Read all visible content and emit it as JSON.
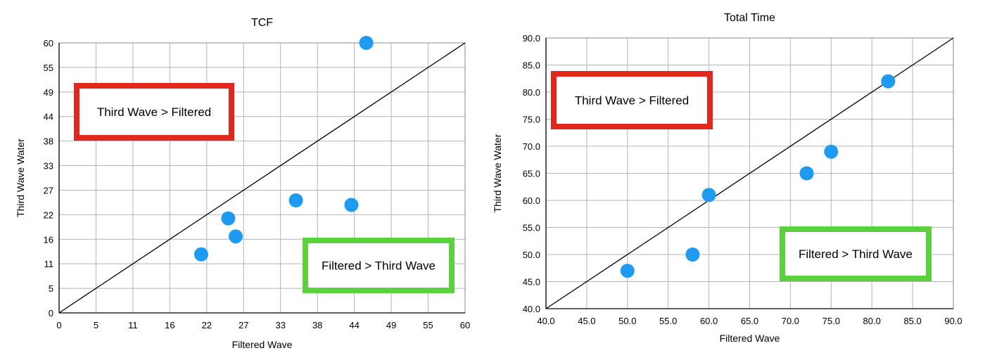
{
  "chart_data": [
    {
      "type": "scatter",
      "title": "TCF",
      "xlabel": "Filtered Wave",
      "ylabel": "Third Wave Water",
      "xlim": [
        0,
        60
      ],
      "ylim": [
        0,
        60
      ],
      "x_ticks": [
        "0",
        "5",
        "11",
        "16",
        "22",
        "27",
        "33",
        "38",
        "44",
        "49",
        "55",
        "60"
      ],
      "y_ticks": [
        "0",
        "5",
        "11",
        "16",
        "22",
        "27",
        "33",
        "38",
        "44",
        "49",
        "55",
        "60"
      ],
      "grid": true,
      "reference_line": "y = x",
      "point_color": "#1E9BF0",
      "points": [
        {
          "x": 45.4,
          "y": 60
        },
        {
          "x": 35,
          "y": 25
        },
        {
          "x": 43.2,
          "y": 24
        },
        {
          "x": 25,
          "y": 21
        },
        {
          "x": 26.1,
          "y": 17
        },
        {
          "x": 21,
          "y": 13
        }
      ],
      "annotations": [
        {
          "text": "Third Wave > Filtered",
          "color": "#E0281F"
        },
        {
          "text": "Filtered > Third Wave",
          "color": "#5DD03F"
        }
      ]
    },
    {
      "type": "scatter",
      "title": "Total Time",
      "xlabel": "Filtered Wave",
      "ylabel": "Third Wave Water",
      "xlim": [
        40,
        90
      ],
      "ylim": [
        40,
        90
      ],
      "x_ticks": [
        "40.0",
        "45.0",
        "50.0",
        "55.0",
        "60.0",
        "65.0",
        "70.0",
        "75.0",
        "80.0",
        "85.0",
        "90.0"
      ],
      "y_ticks": [
        "40.0",
        "45.0",
        "50.0",
        "55.0",
        "60.0",
        "65.0",
        "70.0",
        "75.0",
        "80.0",
        "85.0",
        "90.0"
      ],
      "grid": true,
      "reference_line": "y = x",
      "point_color": "#1E9BF0",
      "points": [
        {
          "x": 82,
          "y": 82
        },
        {
          "x": 75,
          "y": 69
        },
        {
          "x": 72,
          "y": 65
        },
        {
          "x": 60,
          "y": 61
        },
        {
          "x": 58,
          "y": 50
        },
        {
          "x": 50,
          "y": 47
        }
      ],
      "annotations": [
        {
          "text": "Third Wave > Filtered",
          "color": "#E0281F"
        },
        {
          "text": "Filtered > Third Wave",
          "color": "#5DD03F"
        }
      ]
    }
  ]
}
